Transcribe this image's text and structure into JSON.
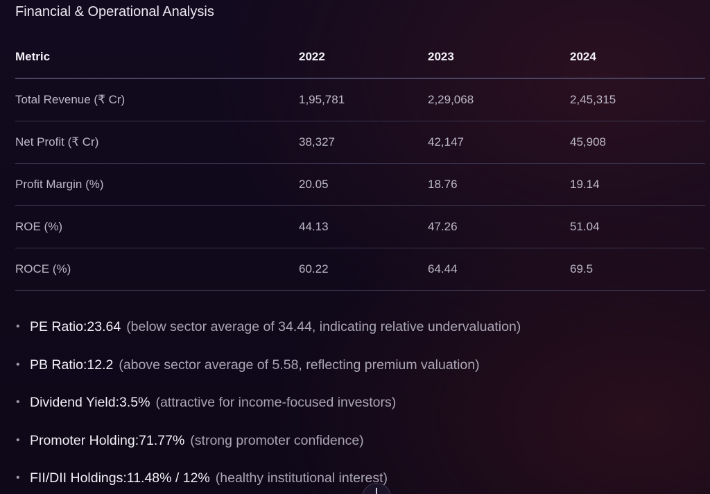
{
  "section_title": "Financial & Operational Analysis",
  "table": {
    "headers": [
      "Metric",
      "2022",
      "2023",
      "2024"
    ],
    "rows": [
      [
        "Total Revenue (₹ Cr)",
        "1,95,781",
        "2,29,068",
        "2,45,315"
      ],
      [
        "Net Profit (₹ Cr)",
        "38,327",
        "42,147",
        "45,908"
      ],
      [
        "Profit Margin (%)",
        "20.05",
        "18.76",
        "19.14"
      ],
      [
        "ROE (%)",
        "44.13",
        "47.26",
        "51.04"
      ],
      [
        "ROCE (%)",
        "60.22",
        "64.44",
        "69.5"
      ]
    ]
  },
  "highlights": [
    {
      "label": "PE Ratio:",
      "value": "23.64",
      "note": "(below sector average of 34.44, indicating relative undervaluation)"
    },
    {
      "label": "PB Ratio:",
      "value": "12.2",
      "note": "(above sector average of 5.58, reflecting premium valuation)"
    },
    {
      "label": "Dividend Yield:",
      "value": "3.5%",
      "note": "(attractive for income-focused investors)"
    },
    {
      "label": "Promoter Holding:",
      "value": "71.77%",
      "note": "(strong promoter confidence)"
    },
    {
      "label": "FII/DII Holdings:",
      "value": "11.48% / 12%",
      "note": "(healthy institutional interest)"
    }
  ],
  "icons": {
    "bullet": "bullet-dot-icon",
    "scroll": "arrow-down-icon"
  }
}
